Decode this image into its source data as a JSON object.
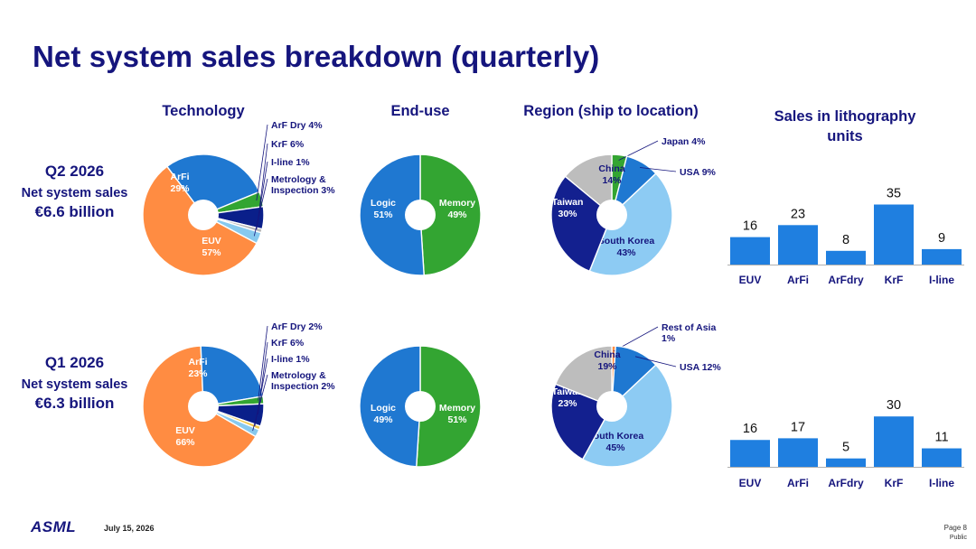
{
  "slide_title": "Net system sales breakdown (quarterly)",
  "columns": {
    "technology": "Technology",
    "end_use": "End-use",
    "region": "Region (ship to location)",
    "litho_units": "Sales in lithography units"
  },
  "quarters": [
    {
      "label": "Q2 2026",
      "sales_label": "Net system sales",
      "sales_value": "€6.6 billion"
    },
    {
      "label": "Q1 2026",
      "sales_label": "Net system sales",
      "sales_value": "€6.3 billion"
    }
  ],
  "colors": {
    "euv": "#ff8c42",
    "arfi": "#1f78d1",
    "arf_dry": "#33a532",
    "krf": "#0a1f8a",
    "iline": "#b8b8b8",
    "metrology": "#87c9ee",
    "logic": "#1f78d1",
    "memory": "#33a532",
    "china": "#bdbdbd",
    "japan": "#33a532",
    "usa": "#1f78d1",
    "south_korea": "#8dcbf3",
    "taiwan": "#13208f",
    "rest_of_asia": "#ff8c42",
    "bar": "#1f7fe0"
  },
  "chart_data": [
    {
      "type": "pie",
      "quarter": "Q2 2026",
      "group": "Technology",
      "slices": [
        {
          "label": "EUV",
          "value": 57,
          "text": "EUV",
          "pct": "57%",
          "color": "#ff8c42",
          "mode": "inside"
        },
        {
          "label": "ArFi",
          "value": 29,
          "text": "ArFi",
          "pct": "29%",
          "color": "#1f78d1",
          "mode": "inside"
        },
        {
          "label": "ArF Dry",
          "value": 4,
          "text": "ArF Dry 4%",
          "pct": "",
          "color": "#33a532",
          "mode": "callout"
        },
        {
          "label": "KrF",
          "value": 6,
          "text": "KrF 6%",
          "pct": "",
          "color": "#0a1f8a",
          "mode": "callout"
        },
        {
          "label": "I-line",
          "value": 1,
          "text": "I-line 1%",
          "pct": "",
          "color": "#b8b8b8",
          "mode": "callout"
        },
        {
          "label": "Metrology & Inspection",
          "value": 3,
          "text": "Metrology &",
          "text2": "Inspection 3%",
          "pct": "",
          "color": "#87c9ee",
          "mode": "callout"
        }
      ]
    },
    {
      "type": "pie",
      "quarter": "Q2 2026",
      "group": "End-use",
      "slices": [
        {
          "label": "Memory",
          "value": 49,
          "text": "Memory",
          "pct": "49%",
          "color": "#33a532",
          "mode": "inside"
        },
        {
          "label": "Logic",
          "value": 51,
          "text": "Logic",
          "pct": "51%",
          "color": "#1f78d1",
          "mode": "inside"
        }
      ]
    },
    {
      "type": "pie",
      "quarter": "Q2 2026",
      "group": "Region (ship to location)",
      "slices": [
        {
          "label": "Japan",
          "value": 4,
          "text": "Japan 4%",
          "pct": "",
          "color": "#33a532",
          "mode": "callout"
        },
        {
          "label": "USA",
          "value": 9,
          "text": "USA 9%",
          "pct": "",
          "color": "#1f78d1",
          "mode": "callout"
        },
        {
          "label": "South Korea",
          "value": 43,
          "text": "South Korea",
          "pct": "43%",
          "color": "#8dcbf3",
          "mode": "inside"
        },
        {
          "label": "Taiwan",
          "value": 30,
          "text": "Taiwan",
          "pct": "30%",
          "color": "#13208f",
          "mode": "inside"
        },
        {
          "label": "China",
          "value": 14,
          "text": "China",
          "pct": "14%",
          "color": "#bdbdbd",
          "mode": "inside"
        }
      ]
    },
    {
      "type": "bar",
      "quarter": "Q2 2026",
      "title": "Sales in lithography units",
      "categories": [
        "EUV",
        "ArFi",
        "ArFdry",
        "KrF",
        "I-line"
      ],
      "values": [
        16,
        23,
        8,
        35,
        9
      ]
    },
    {
      "type": "pie",
      "quarter": "Q1 2026",
      "group": "Technology",
      "slices": [
        {
          "label": "EUV",
          "value": 66,
          "text": "EUV",
          "pct": "66%",
          "color": "#ff8c42",
          "mode": "inside"
        },
        {
          "label": "ArFi",
          "value": 23,
          "text": "ArFi",
          "pct": "23%",
          "color": "#1f78d1",
          "mode": "inside"
        },
        {
          "label": "ArF Dry",
          "value": 2,
          "text": "ArF Dry 2%",
          "pct": "",
          "color": "#33a532",
          "mode": "callout"
        },
        {
          "label": "KrF",
          "value": 6,
          "text": "KrF 6%",
          "pct": "",
          "color": "#0a1f8a",
          "mode": "callout"
        },
        {
          "label": "I-line",
          "value": 1,
          "text": "I-line 1%",
          "pct": "",
          "color": "#f2c94c",
          "mode": "callout"
        },
        {
          "label": "Metrology & Inspection",
          "value": 2,
          "text": "Metrology &",
          "text2": "Inspection 2%",
          "pct": "",
          "color": "#87c9ee",
          "mode": "callout"
        }
      ]
    },
    {
      "type": "pie",
      "quarter": "Q1 2026",
      "group": "End-use",
      "slices": [
        {
          "label": "Memory",
          "value": 51,
          "text": "Memory",
          "pct": "51%",
          "color": "#33a532",
          "mode": "inside"
        },
        {
          "label": "Logic",
          "value": 49,
          "text": "Logic",
          "pct": "49%",
          "color": "#1f78d1",
          "mode": "inside"
        }
      ]
    },
    {
      "type": "pie",
      "quarter": "Q1 2026",
      "group": "Region (ship to location)",
      "slices": [
        {
          "label": "Rest of Asia",
          "value": 1,
          "text": "Rest of Asia",
          "text2": "1%",
          "pct": "",
          "color": "#ff8c42",
          "mode": "callout"
        },
        {
          "label": "USA",
          "value": 12,
          "text": "USA 12%",
          "pct": "",
          "color": "#1f78d1",
          "mode": "callout"
        },
        {
          "label": "South Korea",
          "value": 45,
          "text": "South Korea",
          "pct": "45%",
          "color": "#8dcbf3",
          "mode": "inside"
        },
        {
          "label": "Taiwan",
          "value": 23,
          "text": "Taiwan",
          "pct": "23%",
          "color": "#13208f",
          "mode": "inside"
        },
        {
          "label": "China",
          "value": 19,
          "text": "China",
          "pct": "19%",
          "color": "#bdbdbd",
          "mode": "inside"
        }
      ]
    },
    {
      "type": "bar",
      "quarter": "Q1 2026",
      "title": "",
      "categories": [
        "EUV",
        "ArFi",
        "ArFdry",
        "KrF",
        "I-line"
      ],
      "values": [
        16,
        17,
        5,
        30,
        11
      ]
    }
  ],
  "footer": {
    "logo": "ASML",
    "date": "July 15, 2026",
    "page": "Page 8",
    "classification": "Public"
  }
}
